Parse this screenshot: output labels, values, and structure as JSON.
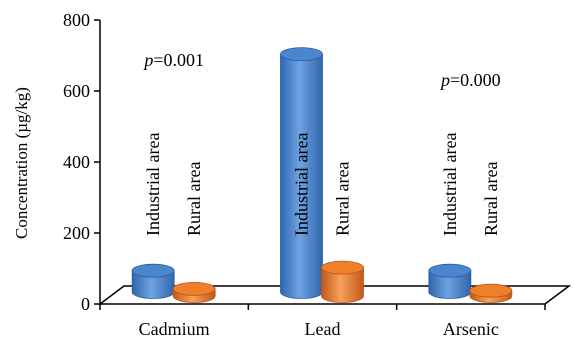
{
  "chart_data": {
    "type": "bar",
    "title": "",
    "xlabel": "",
    "ylabel": "Concentration (µg/kg)",
    "ylim": [
      0,
      800
    ],
    "yticks": [
      0,
      200,
      400,
      600,
      800
    ],
    "grid": false,
    "categories": [
      "Cadmium",
      "Lead",
      "Arsenic"
    ],
    "series": [
      {
        "name": "Industrial area",
        "color": "#4a86cf",
        "values": [
          60,
          670,
          60
        ]
      },
      {
        "name": "Rural area",
        "color": "#ef7f28",
        "values": [
          20,
          80,
          15
        ]
      }
    ],
    "bar_labels": [
      "Industrial area",
      "Rural area"
    ],
    "annotations": [
      {
        "category": "Cadmium",
        "italic": "p",
        "text": "=0.001"
      },
      {
        "category": "Arsenic",
        "italic": "p",
        "text": "=0.000"
      }
    ]
  }
}
